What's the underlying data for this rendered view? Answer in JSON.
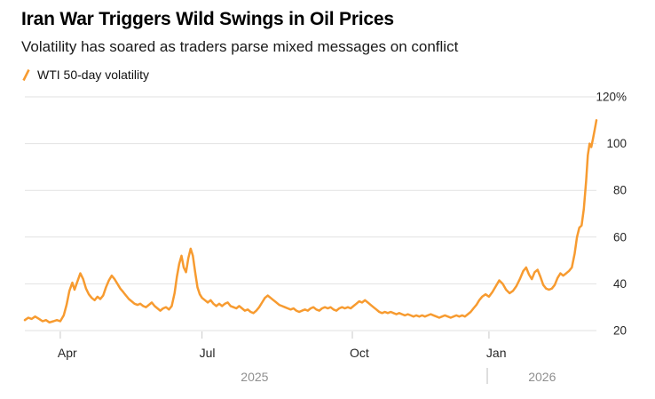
{
  "chart_data": {
    "type": "line",
    "title": "Iran War Triggers Wild Swings in Oil Prices",
    "subtitle": "Volatility has soared as traders parse mixed messages on conflict",
    "legend": [
      {
        "label": "WTI 50-day volatility",
        "color": "#F79B30"
      }
    ],
    "legend_position": "top-left",
    "grid": true,
    "ylim": [
      20,
      120
    ],
    "y_ticks": [
      {
        "value": 20,
        "label": "20"
      },
      {
        "value": 40,
        "label": "40"
      },
      {
        "value": 60,
        "label": "60"
      },
      {
        "value": 80,
        "label": "80"
      },
      {
        "value": 100,
        "label": "100"
      },
      {
        "value": 120,
        "label": "120%"
      }
    ],
    "x_ticks": [
      {
        "label": "Apr",
        "pos": 0.062
      },
      {
        "label": "Jul",
        "pos": 0.31
      },
      {
        "label": "Oct",
        "pos": 0.573
      },
      {
        "label": "Jan",
        "pos": 0.812
      }
    ],
    "x_axis_years": [
      {
        "label": "2025",
        "pos": 0.402
      },
      {
        "label": "2026",
        "pos": 0.905
      }
    ],
    "year_divider_pos": 0.809,
    "colors": {
      "line": "#F79B30",
      "grid": "#E2E2E2",
      "tick": "#C9C9C9",
      "axis_text": "#262626",
      "year_text": "#8F8F8F",
      "divider": "#BDBDBD"
    },
    "series": [
      {
        "name": "WTI 50-day volatility",
        "color": "#F79B30",
        "points": [
          [
            0.0,
            24.5
          ],
          [
            0.006,
            25.5
          ],
          [
            0.012,
            25.0
          ],
          [
            0.018,
            26.0
          ],
          [
            0.025,
            25.0
          ],
          [
            0.031,
            24.0
          ],
          [
            0.037,
            24.5
          ],
          [
            0.043,
            23.5
          ],
          [
            0.05,
            24.0
          ],
          [
            0.056,
            24.5
          ],
          [
            0.062,
            24.0
          ],
          [
            0.068,
            26.5
          ],
          [
            0.073,
            31.0
          ],
          [
            0.078,
            37.0
          ],
          [
            0.083,
            40.5
          ],
          [
            0.087,
            37.5
          ],
          [
            0.092,
            41.0
          ],
          [
            0.097,
            44.5
          ],
          [
            0.102,
            42.0
          ],
          [
            0.107,
            38.0
          ],
          [
            0.112,
            35.5
          ],
          [
            0.117,
            34.0
          ],
          [
            0.122,
            33.0
          ],
          [
            0.127,
            34.5
          ],
          [
            0.132,
            33.5
          ],
          [
            0.137,
            35.0
          ],
          [
            0.142,
            38.5
          ],
          [
            0.147,
            41.5
          ],
          [
            0.152,
            43.5
          ],
          [
            0.157,
            42.0
          ],
          [
            0.162,
            40.0
          ],
          [
            0.167,
            38.0
          ],
          [
            0.172,
            36.5
          ],
          [
            0.177,
            35.0
          ],
          [
            0.182,
            33.5
          ],
          [
            0.187,
            32.5
          ],
          [
            0.192,
            31.5
          ],
          [
            0.197,
            31.0
          ],
          [
            0.202,
            31.5
          ],
          [
            0.207,
            30.5
          ],
          [
            0.212,
            30.0
          ],
          [
            0.217,
            31.0
          ],
          [
            0.222,
            32.0
          ],
          [
            0.227,
            30.5
          ],
          [
            0.232,
            29.5
          ],
          [
            0.237,
            28.5
          ],
          [
            0.242,
            29.5
          ],
          [
            0.247,
            30.0
          ],
          [
            0.252,
            29.0
          ],
          [
            0.257,
            30.5
          ],
          [
            0.262,
            36.0
          ],
          [
            0.266,
            43.0
          ],
          [
            0.27,
            48.5
          ],
          [
            0.274,
            52.0
          ],
          [
            0.278,
            47.0
          ],
          [
            0.282,
            45.0
          ],
          [
            0.286,
            51.0
          ],
          [
            0.29,
            55.0
          ],
          [
            0.294,
            52.0
          ],
          [
            0.298,
            45.0
          ],
          [
            0.302,
            38.5
          ],
          [
            0.306,
            35.5
          ],
          [
            0.31,
            34.0
          ],
          [
            0.315,
            33.0
          ],
          [
            0.32,
            32.0
          ],
          [
            0.325,
            33.0
          ],
          [
            0.33,
            31.5
          ],
          [
            0.335,
            30.5
          ],
          [
            0.34,
            31.5
          ],
          [
            0.345,
            30.5
          ],
          [
            0.35,
            31.5
          ],
          [
            0.355,
            32.0
          ],
          [
            0.36,
            30.5
          ],
          [
            0.365,
            30.0
          ],
          [
            0.37,
            29.5
          ],
          [
            0.375,
            30.5
          ],
          [
            0.38,
            29.5
          ],
          [
            0.385,
            28.5
          ],
          [
            0.39,
            29.0
          ],
          [
            0.395,
            28.0
          ],
          [
            0.4,
            27.5
          ],
          [
            0.405,
            28.5
          ],
          [
            0.41,
            30.0
          ],
          [
            0.415,
            32.0
          ],
          [
            0.42,
            34.0
          ],
          [
            0.425,
            35.0
          ],
          [
            0.43,
            34.0
          ],
          [
            0.435,
            33.0
          ],
          [
            0.44,
            32.0
          ],
          [
            0.445,
            31.0
          ],
          [
            0.45,
            30.5
          ],
          [
            0.455,
            30.0
          ],
          [
            0.46,
            29.5
          ],
          [
            0.465,
            29.0
          ],
          [
            0.47,
            29.5
          ],
          [
            0.475,
            28.5
          ],
          [
            0.48,
            28.0
          ],
          [
            0.485,
            28.5
          ],
          [
            0.49,
            29.0
          ],
          [
            0.495,
            28.5
          ],
          [
            0.5,
            29.5
          ],
          [
            0.505,
            30.0
          ],
          [
            0.51,
            29.0
          ],
          [
            0.515,
            28.5
          ],
          [
            0.52,
            29.5
          ],
          [
            0.525,
            30.0
          ],
          [
            0.53,
            29.5
          ],
          [
            0.535,
            30.0
          ],
          [
            0.54,
            29.0
          ],
          [
            0.545,
            28.5
          ],
          [
            0.55,
            29.5
          ],
          [
            0.555,
            30.0
          ],
          [
            0.56,
            29.5
          ],
          [
            0.565,
            30.0
          ],
          [
            0.57,
            29.5
          ],
          [
            0.575,
            30.5
          ],
          [
            0.58,
            31.5
          ],
          [
            0.585,
            32.5
          ],
          [
            0.59,
            32.0
          ],
          [
            0.595,
            33.0
          ],
          [
            0.6,
            32.0
          ],
          [
            0.605,
            31.0
          ],
          [
            0.61,
            30.0
          ],
          [
            0.615,
            29.0
          ],
          [
            0.62,
            28.0
          ],
          [
            0.625,
            27.5
          ],
          [
            0.63,
            28.0
          ],
          [
            0.635,
            27.5
          ],
          [
            0.64,
            28.0
          ],
          [
            0.645,
            27.5
          ],
          [
            0.65,
            27.0
          ],
          [
            0.655,
            27.5
          ],
          [
            0.66,
            27.0
          ],
          [
            0.665,
            26.5
          ],
          [
            0.67,
            27.0
          ],
          [
            0.675,
            26.5
          ],
          [
            0.68,
            26.0
          ],
          [
            0.685,
            26.5
          ],
          [
            0.69,
            26.0
          ],
          [
            0.695,
            26.5
          ],
          [
            0.7,
            26.0
          ],
          [
            0.705,
            26.5
          ],
          [
            0.71,
            27.0
          ],
          [
            0.715,
            26.5
          ],
          [
            0.72,
            26.0
          ],
          [
            0.725,
            25.5
          ],
          [
            0.73,
            26.0
          ],
          [
            0.735,
            26.5
          ],
          [
            0.74,
            26.0
          ],
          [
            0.745,
            25.5
          ],
          [
            0.75,
            26.0
          ],
          [
            0.755,
            26.5
          ],
          [
            0.76,
            26.0
          ],
          [
            0.765,
            26.5
          ],
          [
            0.77,
            26.0
          ],
          [
            0.775,
            27.0
          ],
          [
            0.78,
            28.0
          ],
          [
            0.785,
            29.5
          ],
          [
            0.79,
            31.0
          ],
          [
            0.795,
            33.0
          ],
          [
            0.8,
            34.5
          ],
          [
            0.806,
            35.5
          ],
          [
            0.812,
            34.5
          ],
          [
            0.818,
            36.5
          ],
          [
            0.824,
            39.0
          ],
          [
            0.83,
            41.5
          ],
          [
            0.836,
            40.0
          ],
          [
            0.842,
            37.5
          ],
          [
            0.848,
            36.0
          ],
          [
            0.854,
            37.0
          ],
          [
            0.86,
            39.0
          ],
          [
            0.866,
            42.0
          ],
          [
            0.872,
            45.5
          ],
          [
            0.877,
            47.0
          ],
          [
            0.882,
            44.0
          ],
          [
            0.887,
            42.0
          ],
          [
            0.892,
            45.0
          ],
          [
            0.897,
            46.0
          ],
          [
            0.902,
            43.0
          ],
          [
            0.907,
            39.5
          ],
          [
            0.912,
            38.0
          ],
          [
            0.917,
            37.5
          ],
          [
            0.922,
            38.0
          ],
          [
            0.927,
            39.5
          ],
          [
            0.932,
            42.5
          ],
          [
            0.937,
            44.5
          ],
          [
            0.942,
            43.5
          ],
          [
            0.947,
            44.5
          ],
          [
            0.952,
            45.5
          ],
          [
            0.957,
            47.0
          ],
          [
            0.962,
            53.0
          ],
          [
            0.966,
            60.0
          ],
          [
            0.97,
            64.0
          ],
          [
            0.974,
            65.0
          ],
          [
            0.978,
            72.0
          ],
          [
            0.982,
            84.0
          ],
          [
            0.985,
            95.0
          ],
          [
            0.988,
            100.0
          ],
          [
            0.991,
            98.5
          ],
          [
            0.994,
            102.0
          ],
          [
            0.997,
            106.0
          ],
          [
            1.0,
            110.0
          ]
        ]
      }
    ]
  }
}
